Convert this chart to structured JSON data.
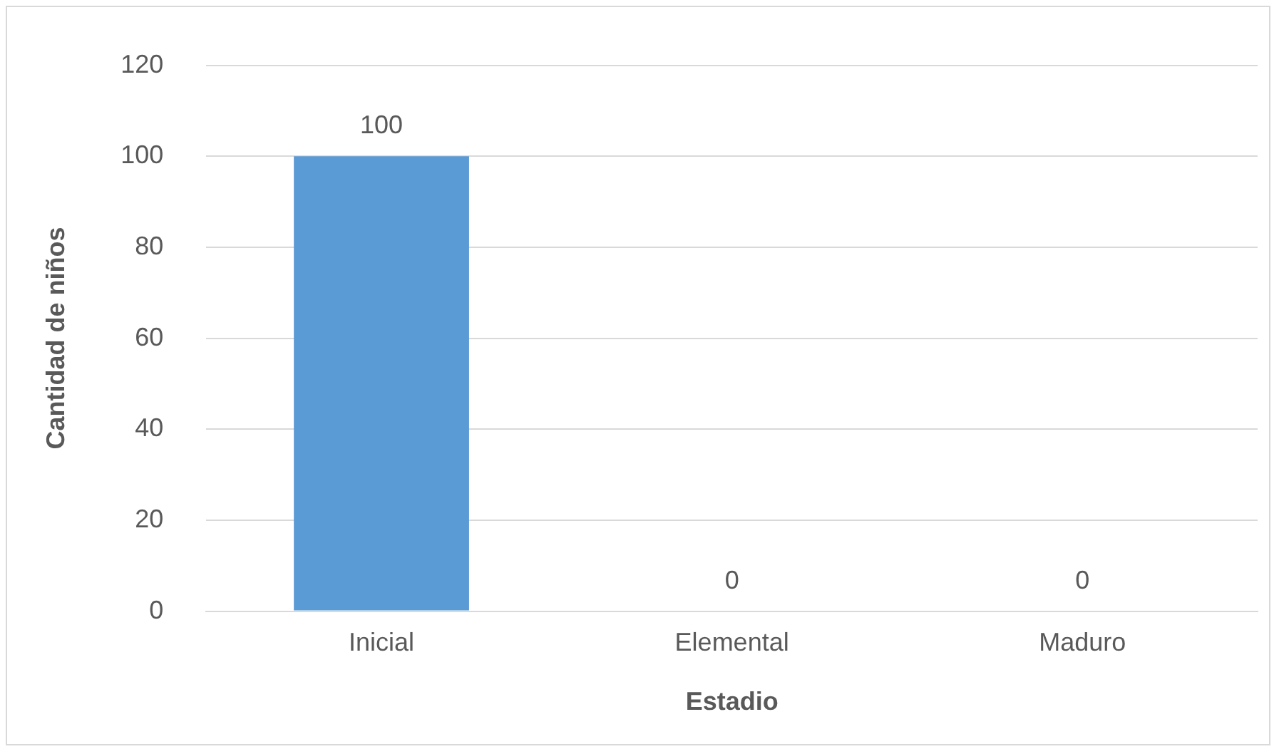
{
  "chart_data": {
    "type": "bar",
    "xlabel": "Estadio",
    "ylabel": "Cantidad de niños",
    "categories": [
      "Inicial",
      "Elemental",
      "Maduro"
    ],
    "values": [
      100,
      0,
      0
    ],
    "color": "#5b9bd5",
    "ylim": [
      0,
      120
    ],
    "yticks": [
      0,
      20,
      40,
      60,
      80,
      100,
      120
    ],
    "grid": "y",
    "data_labels": true
  }
}
